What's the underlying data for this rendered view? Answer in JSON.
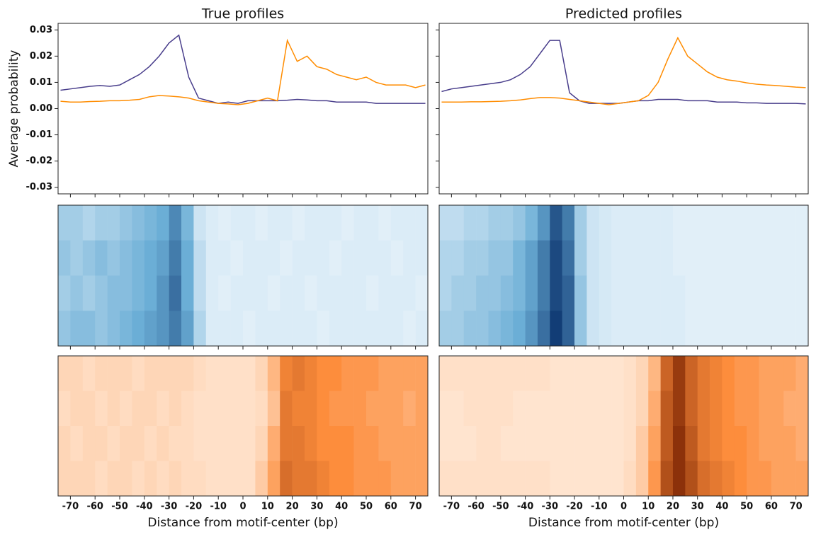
{
  "chart_data": [
    {
      "type": "line",
      "title": "True profiles",
      "ylabel": "Average probability",
      "xlabel": "Distance from motif-center (bp)",
      "x": [
        -74,
        -70,
        -66,
        -62,
        -58,
        -54,
        -50,
        -46,
        -42,
        -38,
        -34,
        -30,
        -26,
        -22,
        -18,
        -14,
        -10,
        -6,
        -2,
        2,
        6,
        10,
        14,
        18,
        22,
        26,
        30,
        34,
        38,
        42,
        46,
        50,
        54,
        58,
        62,
        66,
        70,
        74
      ],
      "series": [
        {
          "color": "#483d8b",
          "values": [
            0.007,
            0.0075,
            0.008,
            0.0085,
            0.0088,
            0.0085,
            0.009,
            0.011,
            0.013,
            0.016,
            0.02,
            0.025,
            0.028,
            0.012,
            0.004,
            0.003,
            0.002,
            0.0025,
            0.002,
            0.003,
            0.003,
            0.003,
            0.003,
            0.0032,
            0.0035,
            0.0033,
            0.003,
            0.003,
            0.0025,
            0.0025,
            0.0025,
            0.0025,
            0.002,
            0.002,
            0.002,
            0.002,
            0.002,
            0.002
          ]
        },
        {
          "color": "#ff8c00",
          "values": [
            0.0028,
            0.0025,
            0.0025,
            0.0027,
            0.0028,
            0.003,
            0.003,
            0.0032,
            0.0035,
            0.0045,
            0.005,
            0.0048,
            0.0045,
            0.004,
            0.003,
            0.0025,
            0.002,
            0.0018,
            0.0015,
            0.002,
            0.003,
            0.004,
            0.003,
            0.026,
            0.018,
            0.02,
            0.016,
            0.015,
            0.013,
            0.012,
            0.011,
            0.012,
            0.01,
            0.009,
            0.009,
            0.009,
            0.008,
            0.009
          ]
        }
      ],
      "xlim": [
        -75,
        75
      ],
      "ylim": [
        -0.0325,
        0.0325
      ],
      "xticks": [
        -70,
        -60,
        -50,
        -40,
        -30,
        -20,
        -10,
        0,
        10,
        20,
        30,
        40,
        50,
        60,
        70
      ],
      "yticks": [
        -0.03,
        -0.02,
        -0.01,
        {
          "value": 0,
          "label": "0.00"
        },
        0.01,
        0.02,
        0.03
      ],
      "ytick_labels": true,
      "heatmaps": [
        {
          "colormap": [
            "#f7fbff",
            "#6baed6",
            "#08306b"
          ],
          "clim": [
            0,
            1
          ],
          "values": [
            [
              0.3,
              0.3,
              0.25,
              0.3,
              0.3,
              0.35,
              0.4,
              0.45,
              0.5,
              0.65,
              0.45,
              0.15,
              0.1,
              0.08,
              0.1,
              0.1,
              0.08,
              0.1,
              0.1,
              0.08,
              0.1,
              0.1,
              0.1,
              0.08,
              0.1,
              0.1,
              0.08,
              0.1,
              0.1,
              0.1
            ],
            [
              0.35,
              0.3,
              0.35,
              0.4,
              0.35,
              0.4,
              0.45,
              0.5,
              0.55,
              0.7,
              0.5,
              0.2,
              0.1,
              0.1,
              0.08,
              0.1,
              0.1,
              0.1,
              0.08,
              0.1,
              0.1,
              0.1,
              0.08,
              0.1,
              0.1,
              0.1,
              0.1,
              0.08,
              0.1,
              0.1
            ],
            [
              0.3,
              0.35,
              0.3,
              0.35,
              0.4,
              0.4,
              0.45,
              0.5,
              0.6,
              0.75,
              0.5,
              0.2,
              0.1,
              0.08,
              0.1,
              0.1,
              0.1,
              0.08,
              0.1,
              0.1,
              0.08,
              0.1,
              0.1,
              0.1,
              0.1,
              0.08,
              0.1,
              0.1,
              0.1,
              0.08
            ],
            [
              0.35,
              0.4,
              0.4,
              0.35,
              0.4,
              0.45,
              0.5,
              0.55,
              0.6,
              0.7,
              0.55,
              0.25,
              0.1,
              0.1,
              0.1,
              0.08,
              0.1,
              0.1,
              0.1,
              0.1,
              0.1,
              0.08,
              0.1,
              0.1,
              0.1,
              0.1,
              0.1,
              0.1,
              0.08,
              0.1
            ]
          ]
        },
        {
          "colormap": [
            "#fff5eb",
            "#fd8d3c",
            "#7f2704"
          ],
          "clim": [
            0,
            1
          ],
          "values": [
            [
              0.15,
              0.15,
              0.12,
              0.15,
              0.15,
              0.15,
              0.12,
              0.15,
              0.15,
              0.15,
              0.15,
              0.12,
              0.1,
              0.1,
              0.1,
              0.1,
              0.15,
              0.3,
              0.55,
              0.6,
              0.55,
              0.5,
              0.5,
              0.45,
              0.45,
              0.45,
              0.4,
              0.4,
              0.4,
              0.4
            ],
            [
              0.12,
              0.15,
              0.15,
              0.12,
              0.15,
              0.12,
              0.15,
              0.15,
              0.12,
              0.15,
              0.12,
              0.1,
              0.1,
              0.1,
              0.1,
              0.1,
              0.12,
              0.25,
              0.6,
              0.55,
              0.55,
              0.5,
              0.45,
              0.45,
              0.45,
              0.4,
              0.4,
              0.4,
              0.35,
              0.4
            ],
            [
              0.15,
              0.12,
              0.15,
              0.15,
              0.12,
              0.15,
              0.15,
              0.12,
              0.15,
              0.12,
              0.12,
              0.1,
              0.1,
              0.1,
              0.1,
              0.1,
              0.15,
              0.35,
              0.6,
              0.6,
              0.55,
              0.5,
              0.5,
              0.5,
              0.45,
              0.45,
              0.4,
              0.4,
              0.4,
              0.4
            ],
            [
              0.15,
              0.15,
              0.15,
              0.12,
              0.15,
              0.15,
              0.12,
              0.15,
              0.12,
              0.15,
              0.12,
              0.12,
              0.1,
              0.1,
              0.1,
              0.1,
              0.2,
              0.4,
              0.65,
              0.6,
              0.6,
              0.55,
              0.5,
              0.5,
              0.45,
              0.45,
              0.45,
              0.4,
              0.4,
              0.4
            ]
          ]
        }
      ]
    },
    {
      "type": "line",
      "title": "Predicted profiles",
      "xlabel": "Distance from motif-center (bp)",
      "x": [
        -74,
        -70,
        -66,
        -62,
        -58,
        -54,
        -50,
        -46,
        -42,
        -38,
        -34,
        -30,
        -26,
        -22,
        -18,
        -14,
        -10,
        -6,
        -2,
        2,
        6,
        10,
        14,
        18,
        22,
        26,
        30,
        34,
        38,
        42,
        46,
        50,
        54,
        58,
        62,
        66,
        70,
        74
      ],
      "series": [
        {
          "color": "#483d8b",
          "values": [
            0.0065,
            0.0075,
            0.008,
            0.0085,
            0.009,
            0.0095,
            0.01,
            0.011,
            0.013,
            0.016,
            0.021,
            0.026,
            0.026,
            0.006,
            0.003,
            0.002,
            0.002,
            0.002,
            0.002,
            0.0025,
            0.003,
            0.003,
            0.0035,
            0.0035,
            0.0035,
            0.003,
            0.003,
            0.003,
            0.0025,
            0.0025,
            0.0025,
            0.0022,
            0.0022,
            0.002,
            0.002,
            0.002,
            0.002,
            0.0018
          ]
        },
        {
          "color": "#ff8c00",
          "values": [
            0.0025,
            0.0025,
            0.0025,
            0.0026,
            0.0026,
            0.0027,
            0.0028,
            0.003,
            0.0033,
            0.0038,
            0.0042,
            0.0042,
            0.004,
            0.0035,
            0.003,
            0.0025,
            0.002,
            0.0015,
            0.002,
            0.0025,
            0.003,
            0.005,
            0.01,
            0.019,
            0.027,
            0.02,
            0.017,
            0.014,
            0.012,
            0.011,
            0.0105,
            0.0098,
            0.0093,
            0.009,
            0.0088,
            0.0085,
            0.0082,
            0.008
          ]
        }
      ],
      "xlim": [
        -75,
        75
      ],
      "ylim": [
        -0.0325,
        0.0325
      ],
      "xticks": [
        -70,
        -60,
        -50,
        -40,
        -30,
        -20,
        -10,
        0,
        10,
        20,
        30,
        40,
        50,
        60,
        70
      ],
      "yticks": [
        -0.03,
        -0.02,
        -0.01,
        0,
        0.01,
        0.02,
        0.03
      ],
      "ytick_labels": false,
      "heatmaps": [
        {
          "colormap": [
            "#f7fbff",
            "#6baed6",
            "#08306b"
          ],
          "clim": [
            0,
            1
          ],
          "values": [
            [
              0.2,
              0.2,
              0.25,
              0.25,
              0.3,
              0.3,
              0.35,
              0.45,
              0.6,
              0.85,
              0.7,
              0.3,
              0.15,
              0.12,
              0.1,
              0.1,
              0.1,
              0.1,
              0.1,
              0.08,
              0.08,
              0.08,
              0.08,
              0.08,
              0.08,
              0.08,
              0.08,
              0.08,
              0.08,
              0.08
            ],
            [
              0.25,
              0.25,
              0.3,
              0.3,
              0.35,
              0.35,
              0.45,
              0.55,
              0.7,
              0.9,
              0.75,
              0.3,
              0.15,
              0.12,
              0.1,
              0.1,
              0.1,
              0.1,
              0.1,
              0.08,
              0.08,
              0.08,
              0.08,
              0.08,
              0.08,
              0.08,
              0.08,
              0.08,
              0.08,
              0.08
            ],
            [
              0.25,
              0.3,
              0.3,
              0.35,
              0.35,
              0.4,
              0.45,
              0.55,
              0.7,
              0.9,
              0.8,
              0.35,
              0.15,
              0.12,
              0.1,
              0.1,
              0.1,
              0.1,
              0.1,
              0.1,
              0.08,
              0.08,
              0.08,
              0.08,
              0.08,
              0.08,
              0.08,
              0.08,
              0.08,
              0.08
            ],
            [
              0.3,
              0.3,
              0.35,
              0.35,
              0.4,
              0.45,
              0.5,
              0.6,
              0.75,
              0.95,
              0.8,
              0.35,
              0.15,
              0.12,
              0.1,
              0.1,
              0.1,
              0.1,
              0.1,
              0.1,
              0.08,
              0.08,
              0.08,
              0.08,
              0.08,
              0.08,
              0.08,
              0.08,
              0.08,
              0.08
            ]
          ]
        },
        {
          "colormap": [
            "#fff5eb",
            "#fd8d3c",
            "#7f2704"
          ],
          "clim": [
            0,
            1
          ],
          "values": [
            [
              0.1,
              0.1,
              0.1,
              0.1,
              0.1,
              0.1,
              0.1,
              0.1,
              0.1,
              0.08,
              0.08,
              0.08,
              0.08,
              0.08,
              0.08,
              0.1,
              0.15,
              0.3,
              0.7,
              0.9,
              0.7,
              0.6,
              0.55,
              0.5,
              0.45,
              0.45,
              0.4,
              0.4,
              0.4,
              0.35
            ],
            [
              0.08,
              0.08,
              0.1,
              0.1,
              0.1,
              0.1,
              0.08,
              0.08,
              0.08,
              0.08,
              0.08,
              0.08,
              0.08,
              0.08,
              0.08,
              0.1,
              0.15,
              0.35,
              0.75,
              0.9,
              0.7,
              0.6,
              0.55,
              0.5,
              0.45,
              0.45,
              0.4,
              0.4,
              0.35,
              0.35
            ],
            [
              0.08,
              0.08,
              0.08,
              0.1,
              0.1,
              0.08,
              0.08,
              0.08,
              0.08,
              0.08,
              0.08,
              0.08,
              0.08,
              0.08,
              0.08,
              0.1,
              0.2,
              0.4,
              0.75,
              0.95,
              0.75,
              0.6,
              0.55,
              0.5,
              0.5,
              0.45,
              0.4,
              0.4,
              0.4,
              0.35
            ],
            [
              0.1,
              0.1,
              0.1,
              0.1,
              0.1,
              0.1,
              0.1,
              0.1,
              0.1,
              0.08,
              0.08,
              0.08,
              0.08,
              0.08,
              0.08,
              0.12,
              0.2,
              0.45,
              0.8,
              0.95,
              0.8,
              0.65,
              0.6,
              0.55,
              0.5,
              0.45,
              0.45,
              0.4,
              0.4,
              0.4
            ]
          ]
        }
      ]
    }
  ]
}
